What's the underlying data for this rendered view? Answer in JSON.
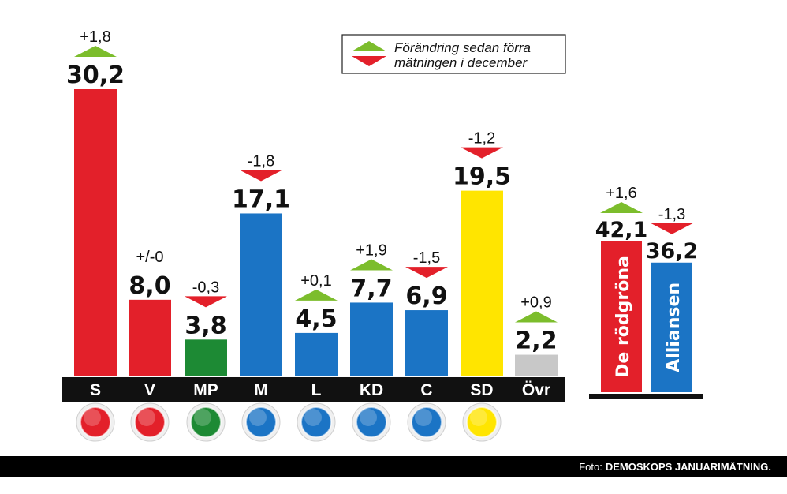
{
  "chart_data": [
    {
      "type": "bar",
      "categories": [
        "S",
        "V",
        "MP",
        "M",
        "L",
        "KD",
        "C",
        "SD",
        "Övr"
      ],
      "values": [
        30.2,
        8.0,
        3.8,
        17.1,
        4.5,
        7.7,
        6.9,
        19.5,
        2.2
      ],
      "value_labels": [
        "30,2",
        "8,0",
        "3,8",
        "17,1",
        "4,5",
        "7,7",
        "6,9",
        "19,5",
        "2,2"
      ],
      "changes": [
        1.8,
        0,
        -0.3,
        -1.8,
        0.1,
        1.9,
        -1.5,
        -1.2,
        0.9
      ],
      "change_labels": [
        "+1,8",
        "+/-0",
        "-0,3",
        "-1,8",
        "+0,1",
        "+1,9",
        "-1,5",
        "-1,2",
        "+0,9"
      ],
      "colors": [
        "#e3202a",
        "#e3202a",
        "#1d8a34",
        "#1b74c5",
        "#1b74c5",
        "#1b74c5",
        "#1b74c5",
        "#ffe500",
        "#c8c8c8"
      ],
      "icons": [
        "rose-logo",
        "v-logo",
        "flower-logo",
        "m-logo",
        "l-logo",
        "kd-logo",
        "clover-logo",
        "anemone-logo",
        ""
      ],
      "ylim": [
        0,
        32
      ]
    },
    {
      "type": "bar",
      "categories": [
        "De rödgröna",
        "Alliansen"
      ],
      "values": [
        42.1,
        36.2
      ],
      "value_labels": [
        "42,1",
        "36,2"
      ],
      "changes": [
        1.6,
        -1.3
      ],
      "change_labels": [
        "+1,6",
        "-1,3"
      ],
      "colors": [
        "#e3202a",
        "#1b74c5"
      ],
      "ylim": [
        0,
        60
      ]
    }
  ],
  "legend": {
    "line1": "Förändring sedan förra",
    "line2": "mätningen i december",
    "up_color": "#7cbd2c",
    "down_color": "#e3202a"
  },
  "footer": {
    "prefix": "Foto:",
    "source": "DEMOSKOPS JANUARIMÄTNING."
  }
}
